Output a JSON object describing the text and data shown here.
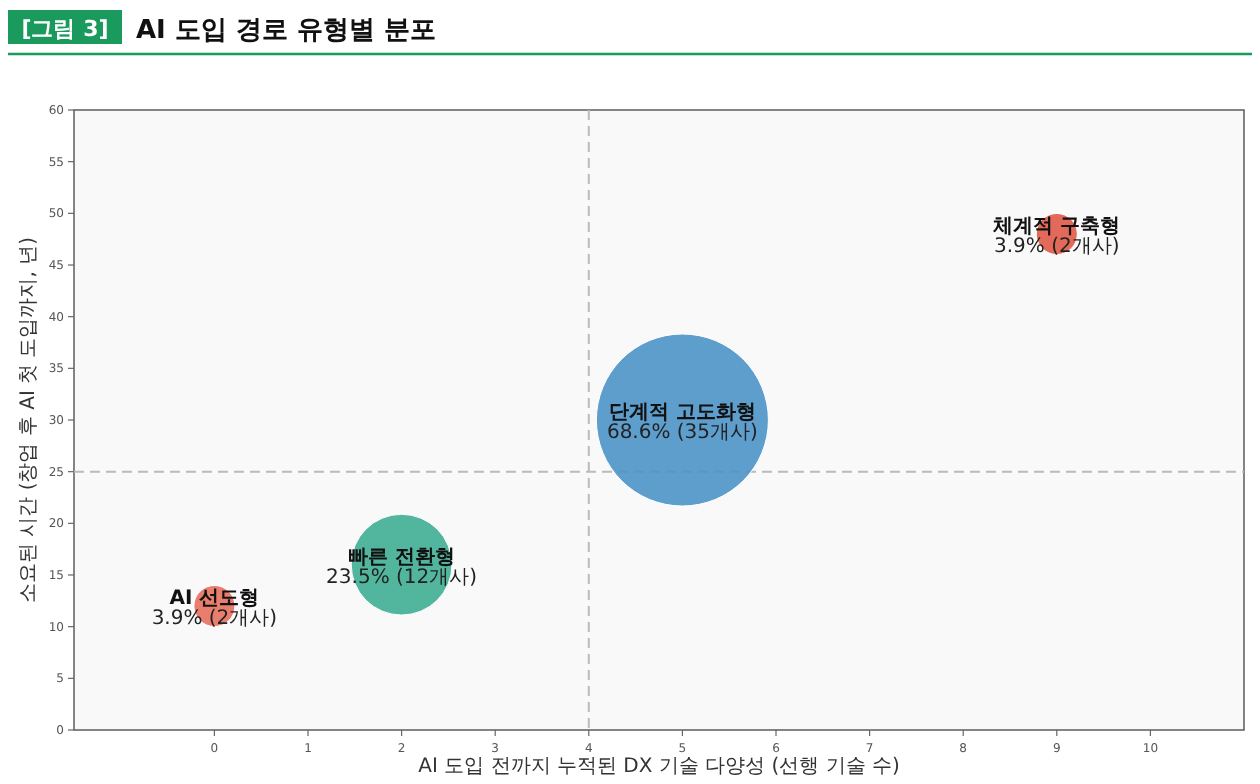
{
  "chart_data": {
    "type": "bubble",
    "title": "AI 도입 경로 유형별 분포",
    "xlabel": "AI 도입 전까지 누적된 DX 기술 다양성 (선행 기술 수)",
    "ylabel": "소요된 시간 (창업 후 AI 첫 도입까지, 년)",
    "series": [
      {
        "name": "AI 선도형",
        "color": "#e8705e",
        "x": [
          0
        ],
        "values": [
          12
        ],
        "sizes": [
          0.057
        ]
      },
      {
        "name": "빠른 전환형",
        "color": "#3fae94",
        "x": [
          2
        ],
        "values": [
          16
        ],
        "sizes": [
          0.343
        ]
      },
      {
        "name": "단계적 고도화형",
        "color": "#4c93c8",
        "x": [
          5
        ],
        "values": [
          30
        ],
        "sizes": [
          1
        ]
      },
      {
        "name": "체계적 구축형",
        "color": "#e05a48",
        "x": [
          9
        ],
        "values": [
          48
        ],
        "sizes": [
          0.057
        ]
      }
    ],
    "annotations": [
      "[그림 3]",
      {
        "text": "3.9% (2개사)",
        "x": 0,
        "y": 12
      },
      {
        "text": "23.5% (12개사)",
        "x": 2,
        "y": 16
      },
      {
        "text": "68.6% (35개사)",
        "x": 5,
        "y": 30
      },
      {
        "text": "3.9% (2개사)",
        "x": 9,
        "y": 48
      }
    ],
    "xlim": [
      -1.5,
      11
    ],
    "ylim": [
      0,
      60
    ],
    "xticks": [
      0,
      1,
      2,
      3,
      4,
      5,
      6,
      7,
      8,
      9,
      10
    ],
    "yticks": [
      0,
      5,
      10,
      15,
      20,
      25,
      30,
      35,
      40,
      45,
      50,
      55,
      60
    ],
    "ref_lines": [
      {
        "axis": "x",
        "value": 4,
        "color": "#bbbbbb",
        "line_style": "dashed"
      },
      {
        "axis": "y",
        "value": 25,
        "color": "#bbbbbb",
        "line_style": "dashed"
      }
    ],
    "grid": false
  }
}
